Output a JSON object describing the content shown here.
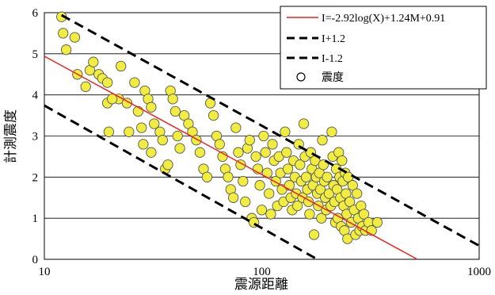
{
  "chart_data": {
    "type": "scatter",
    "xlabel": "震源距離",
    "ylabel": "計測震度",
    "xscale": "log",
    "xlim": [
      10,
      1000
    ],
    "ylim": [
      0,
      6
    ],
    "xticks": [
      "10",
      "100",
      "1000"
    ],
    "yticks": [
      "0",
      "1",
      "2",
      "3",
      "4",
      "5",
      "6"
    ],
    "grid": "horizontal",
    "legend_position": "top-right",
    "colors": {
      "regression": "#ee2222",
      "bounds": "#000000",
      "marker_fill": "#f0ec40",
      "marker_edge": "#555555"
    },
    "series": [
      {
        "name": "I=-2.92log(X)+1.24M+0.91",
        "kind": "line",
        "style": "solid",
        "x": [
          10,
          520
        ],
        "y": [
          4.94,
          0.0
        ]
      },
      {
        "name": "I+1.2",
        "kind": "line",
        "style": "dashed",
        "x": [
          12,
          1000
        ],
        "y": [
          5.94,
          0.33
        ]
      },
      {
        "name": "I-1.2",
        "kind": "line",
        "style": "dashed",
        "x": [
          10,
          180
        ],
        "y": [
          3.74,
          0.0
        ]
      },
      {
        "name": "震度",
        "kind": "scatter",
        "marker": "circle",
        "points": [
          [
            12,
            5.9
          ],
          [
            12.2,
            5.5
          ],
          [
            12.6,
            5.1
          ],
          [
            13.8,
            5.4
          ],
          [
            14.2,
            4.5
          ],
          [
            15.5,
            4.2
          ],
          [
            16.2,
            4.6
          ],
          [
            16.8,
            4.8
          ],
          [
            17.8,
            4.5
          ],
          [
            18.5,
            4.4
          ],
          [
            19.5,
            4.3
          ],
          [
            22,
            3.9
          ],
          [
            22.5,
            4.7
          ],
          [
            19.8,
            3.1
          ],
          [
            19.5,
            3.8
          ],
          [
            20.5,
            3.9
          ],
          [
            24,
            3.8
          ],
          [
            24.5,
            3.1
          ],
          [
            26,
            4.3
          ],
          [
            27,
            3.6
          ],
          [
            28,
            3.2
          ],
          [
            28.5,
            2.8
          ],
          [
            29,
            4.1
          ],
          [
            30,
            3.9
          ],
          [
            31,
            3.7
          ],
          [
            32,
            3.3
          ],
          [
            31,
            2.6
          ],
          [
            34,
            3.1
          ],
          [
            35,
            2.9
          ],
          [
            36,
            2.2
          ],
          [
            37,
            2.3
          ],
          [
            38,
            4.1
          ],
          [
            39,
            3.9
          ],
          [
            40,
            3.6
          ],
          [
            41,
            3.0
          ],
          [
            42,
            2.7
          ],
          [
            44,
            3.5
          ],
          [
            46,
            3.3
          ],
          [
            48,
            3.1
          ],
          [
            50,
            2.9
          ],
          [
            52,
            2.6
          ],
          [
            54,
            2.2
          ],
          [
            56,
            2.0
          ],
          [
            58,
            3.8
          ],
          [
            60,
            3.5
          ],
          [
            62,
            3.0
          ],
          [
            64,
            2.8
          ],
          [
            66,
            2.5
          ],
          [
            68,
            2.2
          ],
          [
            70,
            2.0
          ],
          [
            72,
            1.7
          ],
          [
            74,
            1.5
          ],
          [
            76,
            3.2
          ],
          [
            78,
            2.6
          ],
          [
            80,
            2.3
          ],
          [
            82,
            1.9
          ],
          [
            84,
            1.4
          ],
          [
            86,
            2.7
          ],
          [
            88,
            2.9
          ],
          [
            90,
            1.0
          ],
          [
            92,
            0.9
          ],
          [
            94,
            2.5
          ],
          [
            96,
            2.2
          ],
          [
            98,
            1.8
          ],
          [
            100,
            1.2
          ],
          [
            102,
            3.0
          ],
          [
            104,
            2.6
          ],
          [
            106,
            2.1
          ],
          [
            108,
            1.6
          ],
          [
            110,
            1.1
          ],
          [
            112,
            2.8
          ],
          [
            114,
            2.4
          ],
          [
            116,
            1.9
          ],
          [
            118,
            1.3
          ],
          [
            120,
            2.5
          ],
          [
            122,
            2.1
          ],
          [
            124,
            1.7
          ],
          [
            126,
            1.4
          ],
          [
            128,
            3.1
          ],
          [
            130,
            2.6
          ],
          [
            132,
            2.2
          ],
          [
            134,
            1.8
          ],
          [
            136,
            1.5
          ],
          [
            138,
            1.2
          ],
          [
            140,
            2.4
          ],
          [
            142,
            2.0
          ],
          [
            144,
            1.6
          ],
          [
            146,
            1.3
          ],
          [
            148,
            2.8
          ],
          [
            150,
            2.3
          ],
          [
            152,
            1.9
          ],
          [
            154,
            1.5
          ],
          [
            156,
            3.3
          ],
          [
            158,
            2.5
          ],
          [
            160,
            2.0
          ],
          [
            162,
            1.7
          ],
          [
            164,
            1.4
          ],
          [
            166,
            1.1
          ],
          [
            168,
            2.6
          ],
          [
            170,
            2.2
          ],
          [
            172,
            1.8
          ],
          [
            174,
            0.6
          ],
          [
            176,
            2.4
          ],
          [
            178,
            2.0
          ],
          [
            180,
            1.6
          ],
          [
            182,
            1.3
          ],
          [
            184,
            2.1
          ],
          [
            186,
            1.7
          ],
          [
            188,
            1.0
          ],
          [
            190,
            2.9
          ],
          [
            192,
            2.3
          ],
          [
            194,
            1.9
          ],
          [
            196,
            1.5
          ],
          [
            198,
            1.2
          ],
          [
            200,
            2.0
          ],
          [
            204,
            1.6
          ],
          [
            208,
            1.3
          ],
          [
            210,
            3.1
          ],
          [
            212,
            2.5
          ],
          [
            214,
            1.8
          ],
          [
            216,
            1.4
          ],
          [
            218,
            0.9
          ],
          [
            220,
            2.2
          ],
          [
            222,
            1.7
          ],
          [
            224,
            1.0
          ],
          [
            226,
            2.6
          ],
          [
            228,
            2.0
          ],
          [
            230,
            1.5
          ],
          [
            232,
            0.8
          ],
          [
            234,
            2.4
          ],
          [
            236,
            1.9
          ],
          [
            238,
            1.3
          ],
          [
            240,
            0.7
          ],
          [
            242,
            2.1
          ],
          [
            244,
            1.6
          ],
          [
            246,
            1.1
          ],
          [
            248,
            0.5
          ],
          [
            250,
            2.0
          ],
          [
            254,
            1.4
          ],
          [
            258,
            0.9
          ],
          [
            262,
            1.8
          ],
          [
            266,
            1.2
          ],
          [
            270,
            0.6
          ],
          [
            274,
            1.6
          ],
          [
            278,
            1.0
          ],
          [
            282,
            0.7
          ],
          [
            286,
            1.3
          ],
          [
            290,
            0.8
          ],
          [
            295,
            1.1
          ],
          [
            300,
            0.7
          ],
          [
            310,
            0.9
          ],
          [
            320,
            0.7
          ],
          [
            340,
            0.9
          ]
        ]
      }
    ]
  }
}
